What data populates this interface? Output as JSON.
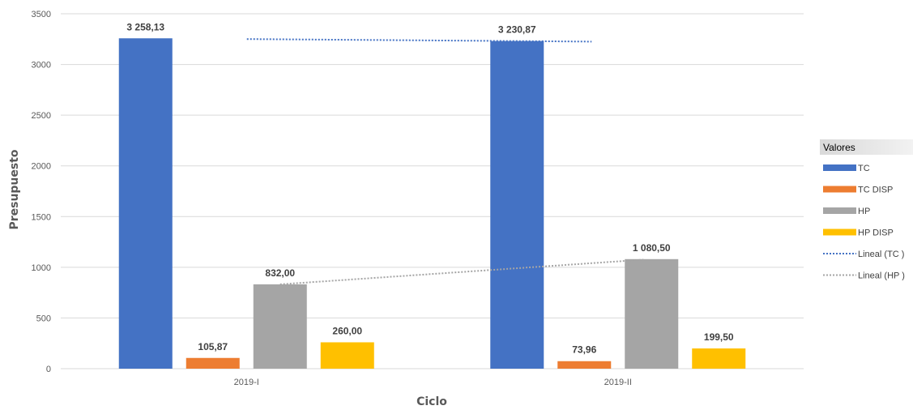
{
  "chart_data": {
    "type": "bar",
    "categories": [
      "2019-I",
      "2019-II"
    ],
    "series": [
      {
        "name": "TC",
        "values": [
          3258.13,
          3230.87
        ],
        "labels": [
          "3 258,13",
          "3 230,87"
        ],
        "color": "#4472C4"
      },
      {
        "name": "TC DISP",
        "values": [
          105.87,
          73.96
        ],
        "labels": [
          "105,87",
          "73,96"
        ],
        "color": "#ED7D31"
      },
      {
        "name": "HP",
        "values": [
          832.0,
          1080.5
        ],
        "labels": [
          "832,00",
          "1 080,50"
        ],
        "color": "#A5A5A5"
      },
      {
        "name": "HP DISP",
        "values": [
          260.0,
          199.5
        ],
        "labels": [
          "260,00",
          "199,50"
        ],
        "color": "#FFC000"
      }
    ],
    "trendlines": [
      {
        "name": "Lineal (TC )",
        "series": "TC",
        "color": "#4472C4"
      },
      {
        "name": "Lineal (HP )",
        "series": "HP",
        "color": "#A5A5A5"
      }
    ],
    "xlabel": "Ciclo",
    "ylabel": "Presupuesto",
    "ylim": [
      0,
      3500
    ],
    "yticks": [
      0,
      500,
      1000,
      1500,
      2000,
      2500,
      3000,
      3500
    ],
    "grid": true,
    "legend": {
      "title": "Valores",
      "position": "right"
    }
  }
}
